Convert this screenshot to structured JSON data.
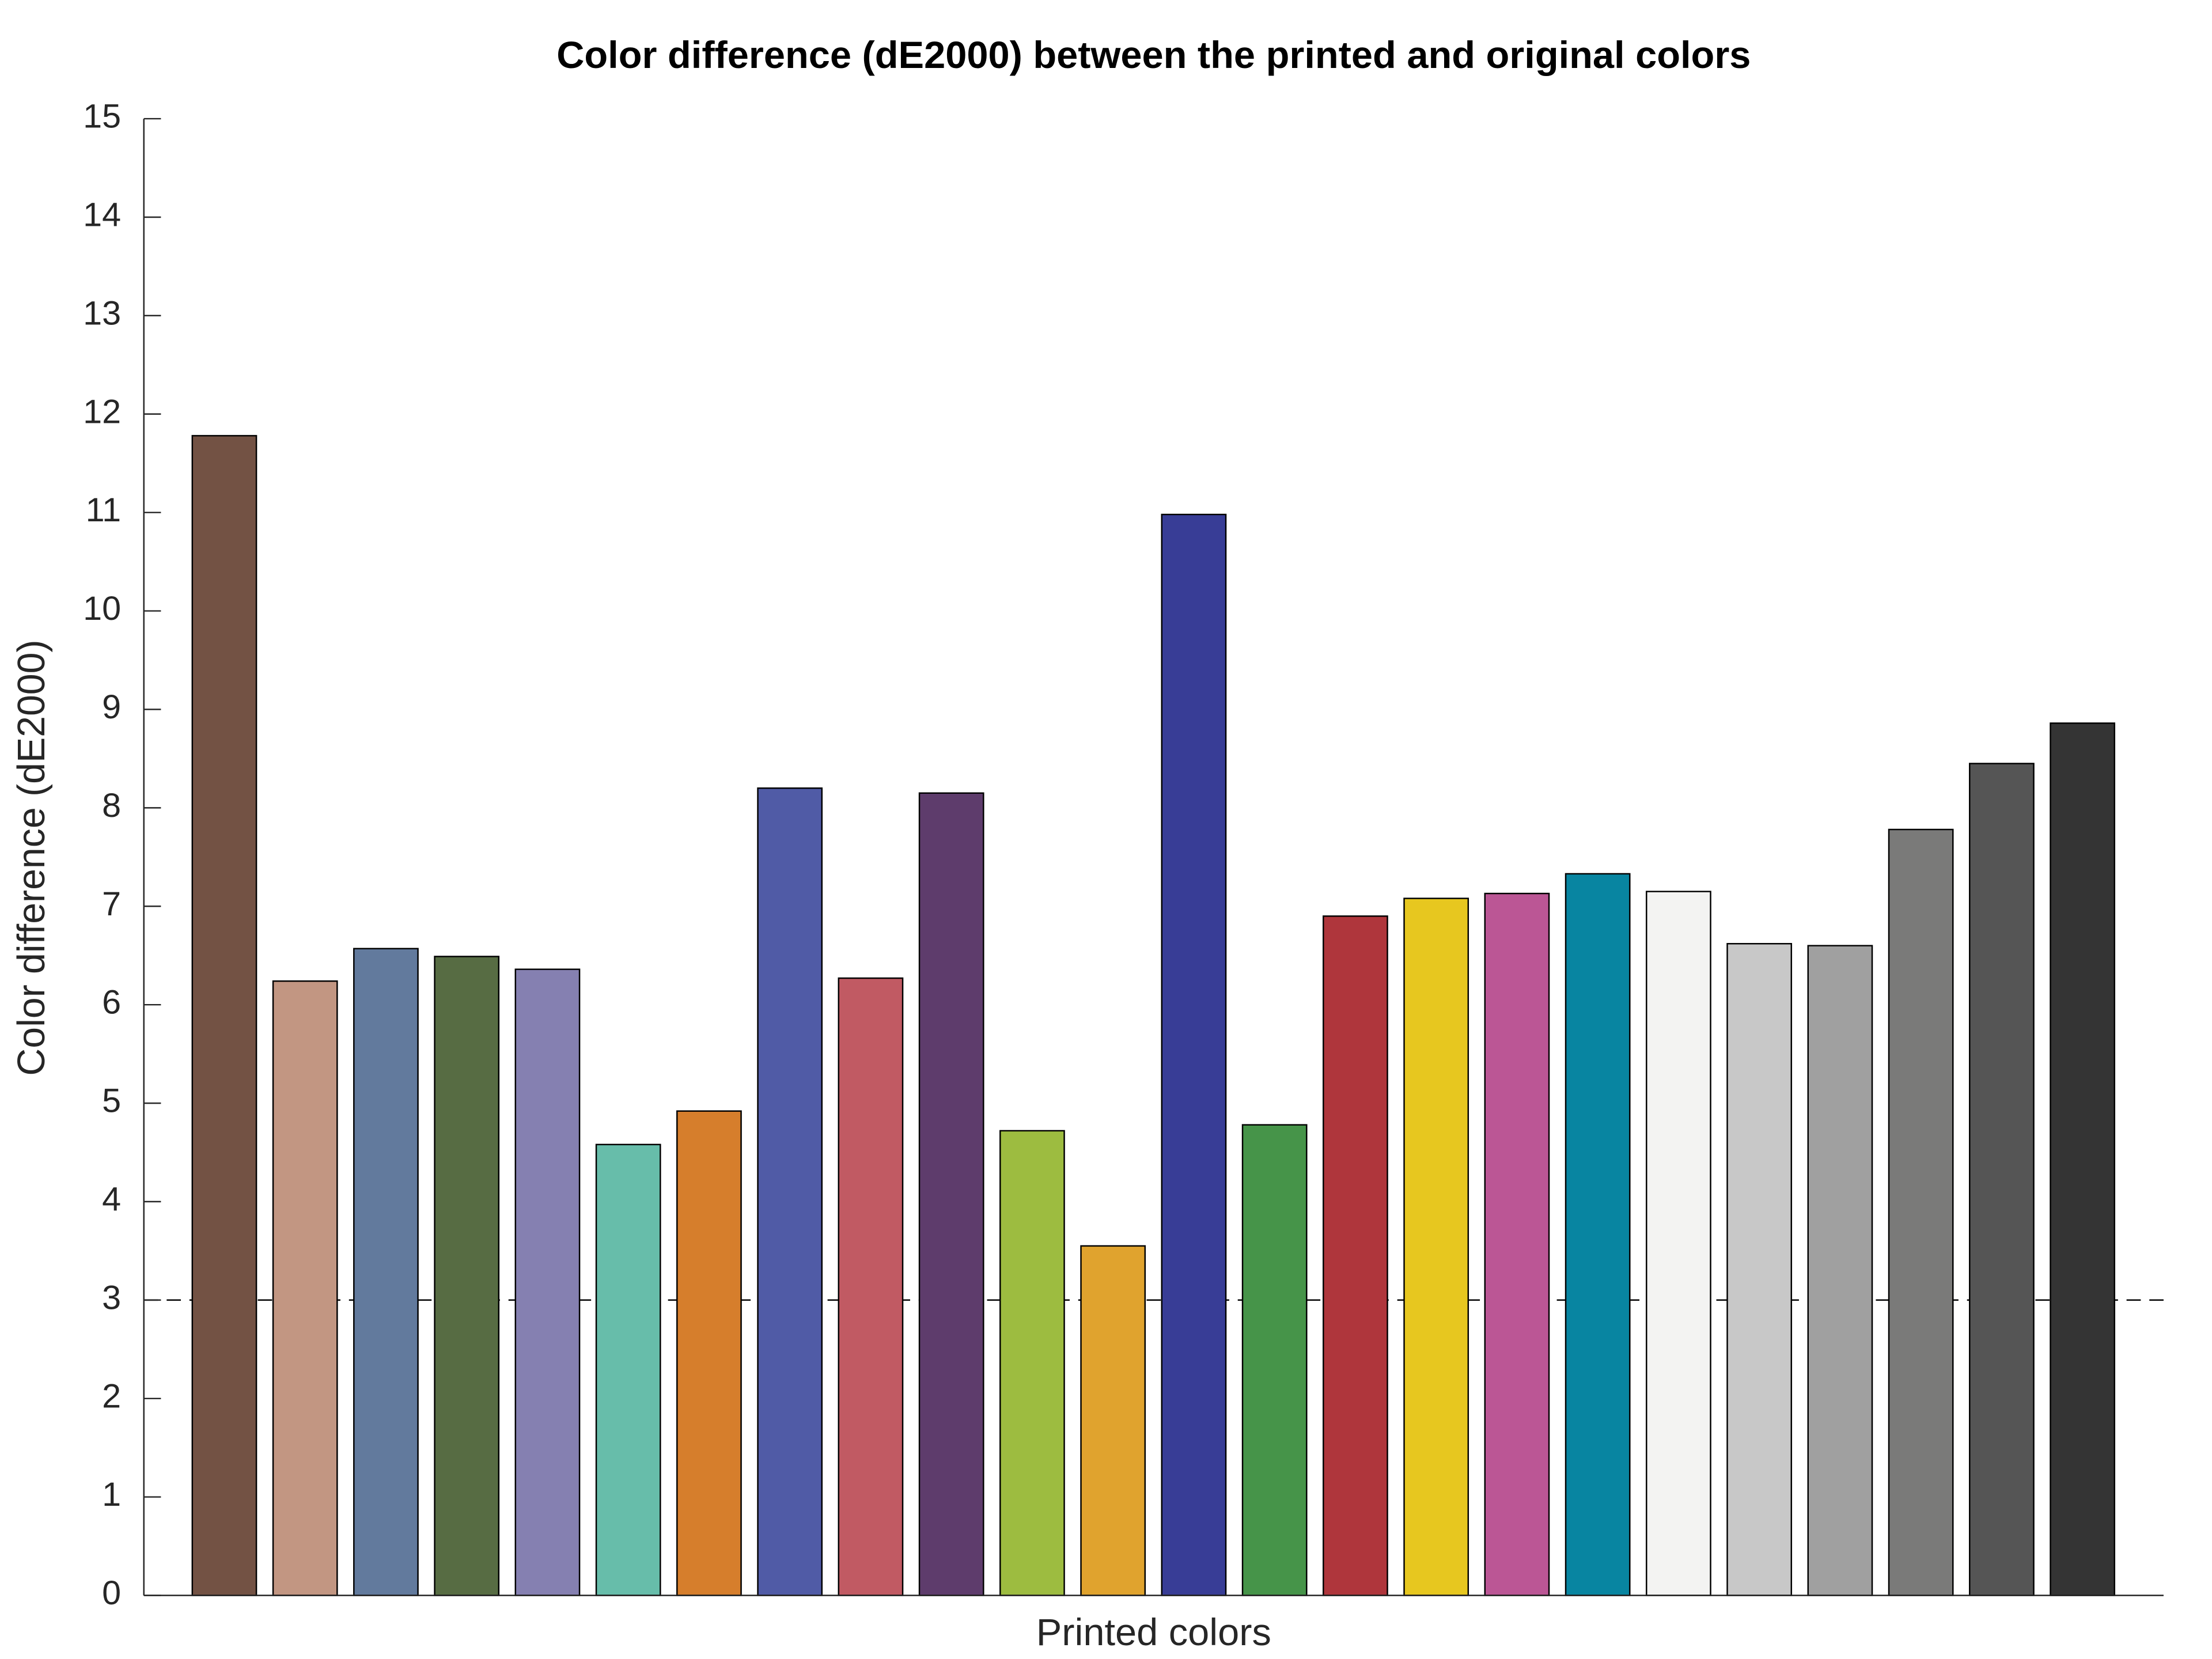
{
  "chart_data": {
    "type": "bar",
    "title": "Color difference (dE2000) between the printed and original colors",
    "xlabel": "Printed colors",
    "ylabel": "Color difference (dE2000)",
    "values": [
      11.78,
      6.24,
      6.57,
      6.49,
      6.36,
      4.58,
      4.92,
      8.2,
      6.27,
      8.15,
      4.72,
      3.55,
      10.98,
      4.78,
      6.9,
      7.08,
      7.13,
      7.33,
      7.15,
      6.62,
      6.6,
      7.78,
      8.45,
      8.86
    ],
    "colors": [
      "#735244",
      "#c29682",
      "#627a9d",
      "#576c43",
      "#8580b1",
      "#67bdaa",
      "#d67e2c",
      "#505ba6",
      "#c15a63",
      "#5e3c6c",
      "#9dbc40",
      "#e0a32e",
      "#383d96",
      "#469449",
      "#af363c",
      "#e7c71f",
      "#bb5695",
      "#0885a1",
      "#f3f3f2",
      "#c8c8c8",
      "#a0a0a0",
      "#7a7a79",
      "#555555",
      "#343434"
    ],
    "reference_line": 3,
    "ylim": [
      0,
      15
    ],
    "yticks": [
      0,
      1,
      2,
      3,
      4,
      5,
      6,
      7,
      8,
      9,
      10,
      11,
      12,
      13,
      14,
      15
    ],
    "grid": false
  }
}
